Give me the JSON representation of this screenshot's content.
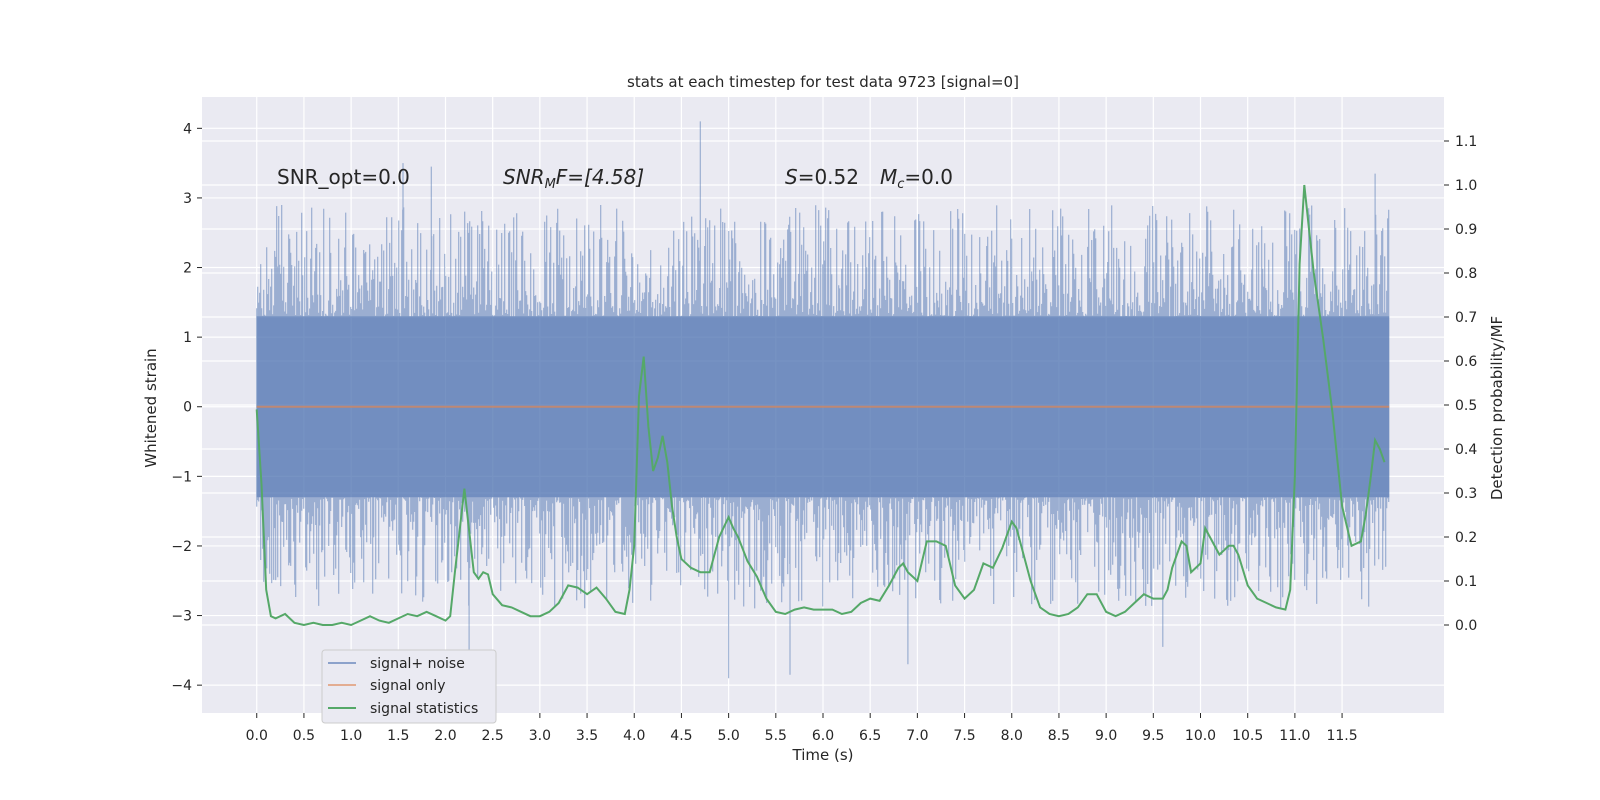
{
  "chart_data": {
    "type": "line",
    "title": "stats at each timestep for test data 9723 [signal=0]",
    "xlabel": "Time (s)",
    "ylabel": "Whitened strain",
    "ylabel_right": "Detection probability/MF",
    "xlim": [
      -0.58,
      12.58
    ],
    "ylim": [
      -4.4,
      4.45
    ],
    "ylim_right": [
      -0.2,
      1.2
    ],
    "x_ticks": [
      0.0,
      0.5,
      1.0,
      1.5,
      2.0,
      2.5,
      3.0,
      3.5,
      4.0,
      4.5,
      5.0,
      5.5,
      6.0,
      6.5,
      7.0,
      7.5,
      8.0,
      8.5,
      9.0,
      9.5,
      10.0,
      10.5,
      11.0,
      11.5
    ],
    "x_tick_labels": [
      "0.0",
      "0.5",
      "1.0",
      "1.5",
      "2.0",
      "2.5",
      "3.0",
      "3.5",
      "4.0",
      "4.5",
      "5.0",
      "5.5",
      "6.0",
      "6.5",
      "7.0",
      "7.5",
      "8.0",
      "8.5",
      "9.0",
      "9.5",
      "10.0",
      "10.5",
      "11.0",
      "11.5"
    ],
    "y_ticks": [
      -4,
      -3,
      -2,
      -1,
      0,
      1,
      2,
      3,
      4
    ],
    "y_tick_labels": [
      "−4",
      "−3",
      "−2",
      "−1",
      "0",
      "1",
      "2",
      "3",
      "4"
    ],
    "y_ticks_right": [
      0.0,
      0.1,
      0.2,
      0.3,
      0.4,
      0.5,
      0.6,
      0.7,
      0.8,
      0.9,
      1.0,
      1.1
    ],
    "y_tick_labels_right": [
      "0.0",
      "0.1",
      "0.2",
      "0.3",
      "0.4",
      "0.5",
      "0.6",
      "0.7",
      "0.8",
      "0.9",
      "1.0",
      "1.1"
    ],
    "grid": true,
    "legend_position": "lower-left",
    "annotations": {
      "snr_opt": "SNR_opt=0.0",
      "snr_mf_base": "SNR",
      "snr_mf_sub": "M",
      "snr_mf_rest": "F=[4.58]",
      "s_label": "S",
      "s_value": "=0.52",
      "mc_label": "M",
      "mc_sub": "c",
      "mc_value": "=0.0"
    },
    "series": [
      {
        "name": "signal+ noise",
        "color": "#4c72b0",
        "axis": "left",
        "x_range": [
          0.0,
          12.0
        ],
        "envelope": {
          "typical_max": 1.3,
          "typical_min": -1.3,
          "peak_max": 4.1,
          "peak_min": -3.9
        },
        "notable_peaks": [
          [
            1.55,
            3.5
          ],
          [
            1.85,
            3.45
          ],
          [
            4.7,
            4.1
          ],
          [
            11.85,
            3.35
          ],
          [
            5.0,
            -3.9
          ],
          [
            5.65,
            -3.85
          ],
          [
            6.9,
            -3.7
          ],
          [
            9.6,
            -3.45
          ],
          [
            2.25,
            -3.5
          ]
        ]
      },
      {
        "name": "signal only",
        "color": "#dd8452",
        "axis": "left",
        "x": [
          0.0,
          12.0
        ],
        "y": [
          0.0,
          0.0
        ]
      },
      {
        "name": "signal statistics",
        "color": "#55a868",
        "axis": "right",
        "x": [
          0.0,
          0.05,
          0.1,
          0.15,
          0.2,
          0.3,
          0.4,
          0.5,
          0.6,
          0.7,
          0.8,
          0.9,
          1.0,
          1.1,
          1.2,
          1.3,
          1.4,
          1.5,
          1.6,
          1.7,
          1.8,
          1.9,
          2.0,
          2.05,
          2.1,
          2.2,
          2.3,
          2.35,
          2.4,
          2.45,
          2.5,
          2.6,
          2.7,
          2.8,
          2.9,
          3.0,
          3.1,
          3.2,
          3.3,
          3.4,
          3.5,
          3.6,
          3.7,
          3.8,
          3.9,
          3.95,
          4.0,
          4.05,
          4.1,
          4.15,
          4.2,
          4.25,
          4.3,
          4.35,
          4.4,
          4.45,
          4.5,
          4.6,
          4.7,
          4.8,
          4.9,
          5.0,
          5.05,
          5.1,
          5.2,
          5.3,
          5.4,
          5.5,
          5.6,
          5.7,
          5.8,
          5.9,
          6.0,
          6.1,
          6.2,
          6.3,
          6.4,
          6.5,
          6.6,
          6.7,
          6.8,
          6.85,
          6.9,
          7.0,
          7.1,
          7.2,
          7.3,
          7.4,
          7.5,
          7.6,
          7.7,
          7.8,
          7.9,
          8.0,
          8.05,
          8.1,
          8.2,
          8.3,
          8.4,
          8.5,
          8.6,
          8.7,
          8.8,
          8.9,
          9.0,
          9.1,
          9.2,
          9.3,
          9.4,
          9.5,
          9.6,
          9.65,
          9.7,
          9.8,
          9.85,
          9.9,
          10.0,
          10.05,
          10.1,
          10.2,
          10.3,
          10.35,
          10.4,
          10.5,
          10.6,
          10.7,
          10.8,
          10.9,
          10.95,
          11.0,
          11.05,
          11.1,
          11.15,
          11.2,
          11.3,
          11.4,
          11.5,
          11.6,
          11.7,
          11.75,
          11.8,
          11.85,
          11.9,
          11.95
        ],
        "y": [
          0.49,
          0.32,
          0.08,
          0.02,
          0.015,
          0.025,
          0.005,
          0.0,
          0.005,
          0.0,
          0.0,
          0.005,
          0.0,
          0.01,
          0.02,
          0.01,
          0.005,
          0.015,
          0.025,
          0.02,
          0.03,
          0.02,
          0.01,
          0.02,
          0.12,
          0.31,
          0.12,
          0.105,
          0.12,
          0.115,
          0.07,
          0.045,
          0.04,
          0.03,
          0.02,
          0.02,
          0.03,
          0.05,
          0.09,
          0.085,
          0.07,
          0.085,
          0.06,
          0.03,
          0.025,
          0.08,
          0.18,
          0.52,
          0.61,
          0.45,
          0.35,
          0.38,
          0.43,
          0.37,
          0.27,
          0.2,
          0.15,
          0.13,
          0.12,
          0.12,
          0.2,
          0.245,
          0.22,
          0.2,
          0.145,
          0.11,
          0.06,
          0.03,
          0.025,
          0.035,
          0.04,
          0.035,
          0.035,
          0.035,
          0.025,
          0.03,
          0.05,
          0.06,
          0.055,
          0.09,
          0.13,
          0.14,
          0.12,
          0.1,
          0.19,
          0.19,
          0.18,
          0.09,
          0.06,
          0.08,
          0.14,
          0.13,
          0.175,
          0.235,
          0.22,
          0.18,
          0.1,
          0.04,
          0.025,
          0.02,
          0.025,
          0.04,
          0.07,
          0.07,
          0.03,
          0.02,
          0.03,
          0.05,
          0.07,
          0.06,
          0.06,
          0.08,
          0.13,
          0.19,
          0.18,
          0.12,
          0.14,
          0.22,
          0.2,
          0.16,
          0.18,
          0.18,
          0.16,
          0.09,
          0.06,
          0.05,
          0.04,
          0.035,
          0.08,
          0.34,
          0.82,
          1.0,
          0.9,
          0.8,
          0.65,
          0.48,
          0.27,
          0.18,
          0.19,
          0.25,
          0.33,
          0.42,
          0.4,
          0.37
        ]
      }
    ]
  }
}
